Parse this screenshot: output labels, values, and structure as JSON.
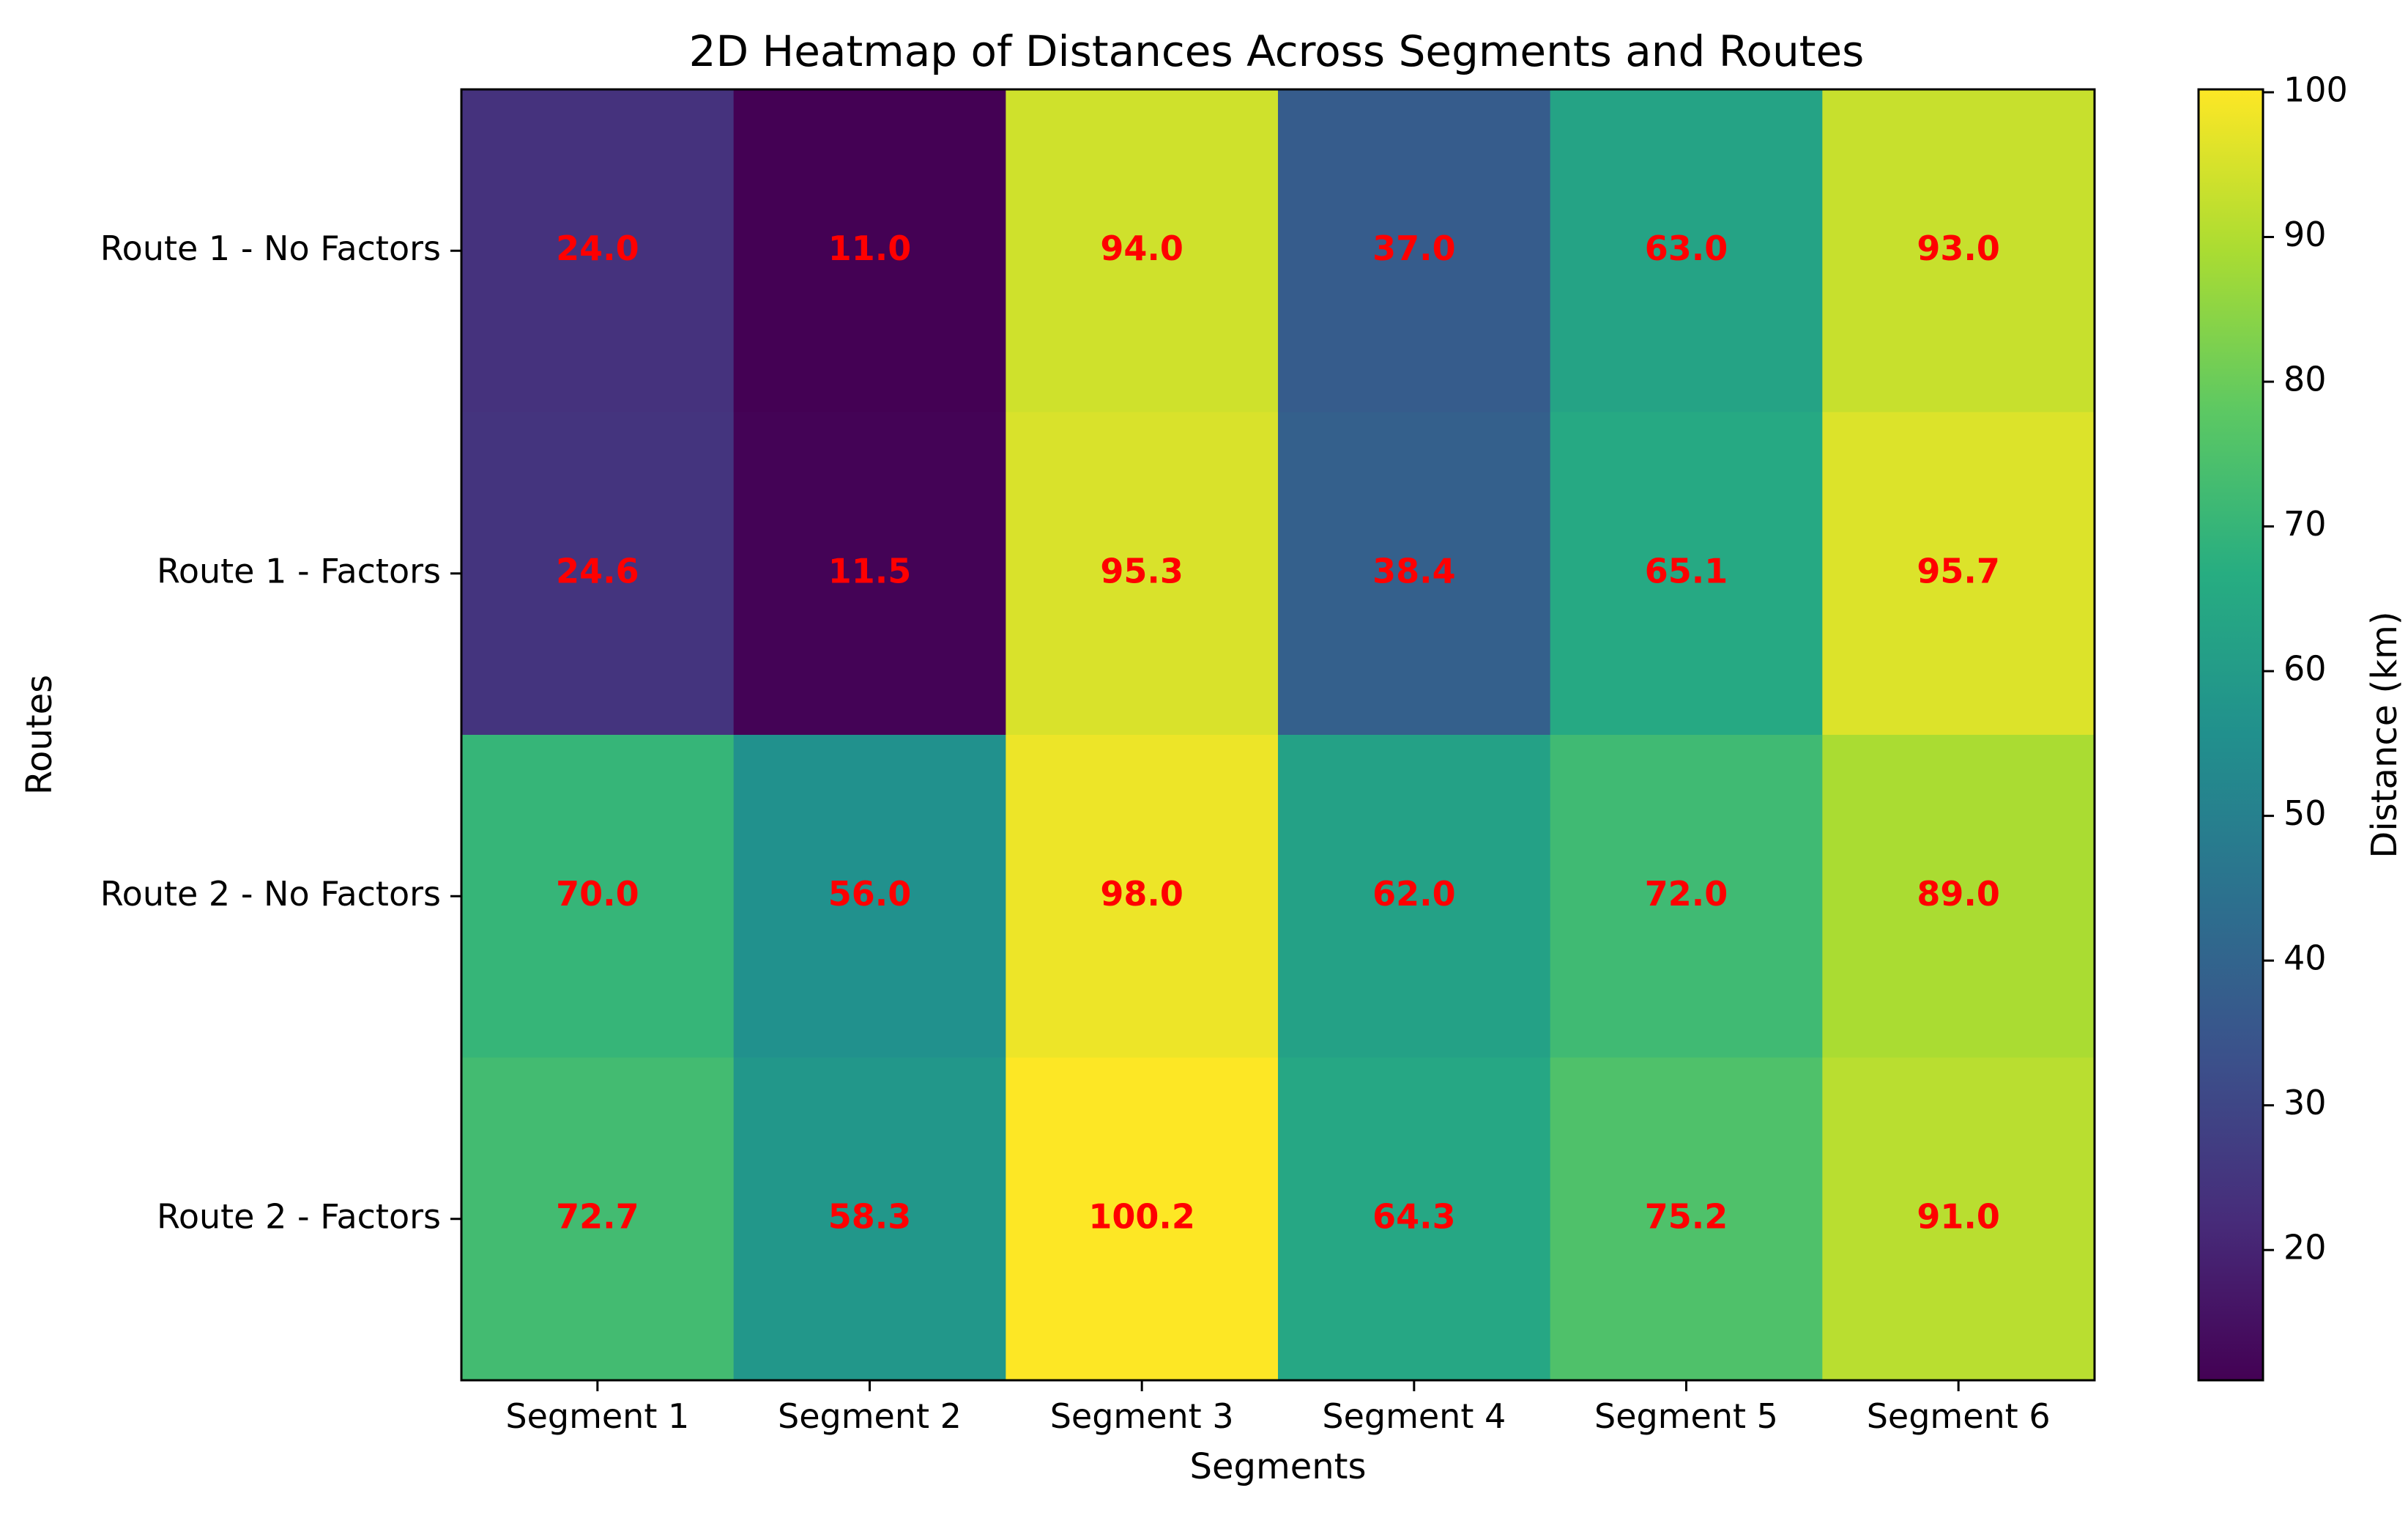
{
  "chart_data": {
    "type": "heatmap",
    "title": "2D Heatmap of Distances Across Segments and Routes",
    "xlabel": "Segments",
    "ylabel": "Routes",
    "x_categories": [
      "Segment 1",
      "Segment 2",
      "Segment 3",
      "Segment 4",
      "Segment 5",
      "Segment 6"
    ],
    "y_categories": [
      "Route 1 - No Factors",
      "Route 1 - Factors",
      "Route 2 - No Factors",
      "Route 2 - Factors"
    ],
    "values": [
      [
        24.0,
        11.0,
        94.0,
        37.0,
        63.0,
        93.0
      ],
      [
        24.6,
        11.5,
        95.3,
        38.4,
        65.1,
        95.7
      ],
      [
        70.0,
        56.0,
        98.0,
        62.0,
        72.0,
        89.0
      ],
      [
        72.7,
        58.3,
        100.2,
        64.3,
        75.2,
        91.0
      ]
    ],
    "value_label_color": "#ff0000",
    "colormap": "viridis",
    "colorbar": {
      "label": "Distance (km)",
      "range": [
        11.0,
        100.2
      ],
      "ticks": [
        20,
        30,
        40,
        50,
        60,
        70,
        80,
        90,
        100
      ]
    },
    "grid": false
  }
}
